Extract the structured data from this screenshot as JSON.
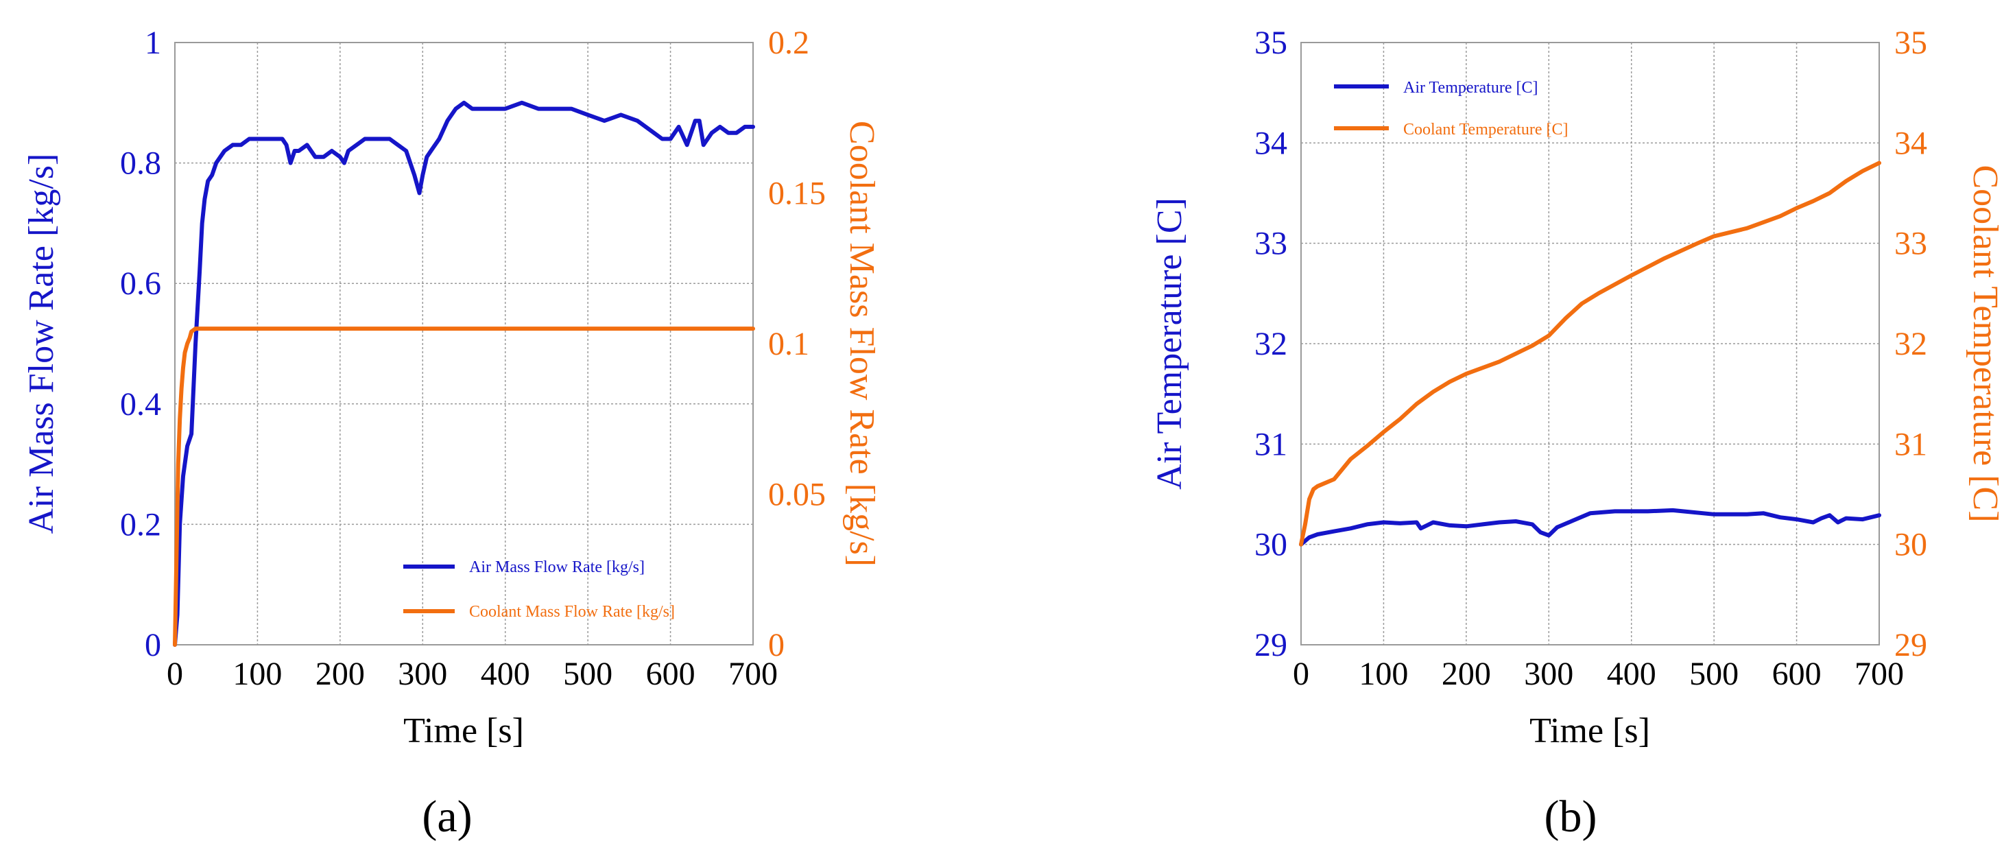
{
  "colors": {
    "air": "#1515c8",
    "coolant": "#f26e10",
    "grid": "#9a9a9a",
    "frame": "#9a9a9a",
    "text": "#000000"
  },
  "chart_data": [
    {
      "id": "a",
      "type": "line",
      "panel_label": "(a)",
      "xlabel": "Time [s]",
      "ylabel_left": "Air Mass Flow Rate [kg/s]",
      "ylabel_right": "Coolant Mass Flow Rate [kg/s]",
      "xlim": [
        0,
        700
      ],
      "ylim_left": [
        0,
        1
      ],
      "ylim_right": [
        0,
        0.2
      ],
      "x_ticks": [
        "0",
        "100",
        "200",
        "300",
        "400",
        "500",
        "600",
        "700"
      ],
      "y_ticks_left": [
        "0",
        "0.2",
        "0.4",
        "0.6",
        "0.8",
        "1"
      ],
      "y_ticks_right": [
        "0",
        "0.05",
        "0.1",
        "0.15",
        "0.2"
      ],
      "grid": true,
      "legend_position": "bottom-right",
      "legend": [
        "Air Mass Flow Rate [kg/s]",
        "Coolant Mass Flow Rate [kg/s]"
      ],
      "series": [
        {
          "name": "Air Mass Flow Rate [kg/s]",
          "axis": "left",
          "color_key": "air",
          "x": [
            0,
            3,
            6,
            10,
            15,
            20,
            25,
            30,
            33,
            36,
            40,
            45,
            50,
            55,
            60,
            70,
            80,
            90,
            100,
            110,
            120,
            130,
            135,
            140,
            145,
            150,
            160,
            170,
            180,
            190,
            200,
            205,
            210,
            220,
            230,
            240,
            250,
            260,
            270,
            280,
            290,
            296,
            300,
            305,
            310,
            320,
            330,
            340,
            350,
            360,
            370,
            380,
            400,
            420,
            440,
            460,
            480,
            500,
            520,
            540,
            560,
            580,
            590,
            600,
            610,
            620,
            630,
            635,
            640,
            650,
            660,
            670,
            680,
            690,
            700
          ],
          "values": [
            0,
            0.05,
            0.2,
            0.28,
            0.33,
            0.35,
            0.5,
            0.62,
            0.7,
            0.74,
            0.77,
            0.78,
            0.8,
            0.81,
            0.82,
            0.83,
            0.83,
            0.84,
            0.84,
            0.84,
            0.84,
            0.84,
            0.83,
            0.8,
            0.82,
            0.82,
            0.83,
            0.81,
            0.81,
            0.82,
            0.81,
            0.8,
            0.82,
            0.83,
            0.84,
            0.84,
            0.84,
            0.84,
            0.83,
            0.82,
            0.78,
            0.75,
            0.78,
            0.81,
            0.82,
            0.84,
            0.87,
            0.89,
            0.9,
            0.89,
            0.89,
            0.89,
            0.89,
            0.9,
            0.89,
            0.89,
            0.89,
            0.88,
            0.87,
            0.88,
            0.87,
            0.85,
            0.84,
            0.84,
            0.86,
            0.83,
            0.87,
            0.87,
            0.83,
            0.85,
            0.86,
            0.85,
            0.85,
            0.86,
            0.86
          ]
        },
        {
          "name": "Coolant Mass Flow Rate [kg/s]",
          "axis": "right",
          "color_key": "coolant",
          "x": [
            0,
            2,
            4,
            6,
            8,
            10,
            12,
            15,
            18,
            20,
            25,
            30,
            40,
            700
          ],
          "values": [
            0,
            0.03,
            0.06,
            0.075,
            0.085,
            0.092,
            0.097,
            0.1,
            0.102,
            0.104,
            0.105,
            0.105,
            0.105,
            0.105
          ]
        }
      ]
    },
    {
      "id": "b",
      "type": "line",
      "panel_label": "(b)",
      "xlabel": "Time [s]",
      "ylabel_left": "Air Temperature [C]",
      "ylabel_right": "Coolant Temperature [C]",
      "xlim": [
        0,
        700
      ],
      "ylim_left": [
        29,
        35
      ],
      "ylim_right": [
        29,
        35
      ],
      "x_ticks": [
        "0",
        "100",
        "200",
        "300",
        "400",
        "500",
        "600",
        "700"
      ],
      "y_ticks_left": [
        "29",
        "30",
        "31",
        "32",
        "33",
        "34",
        "35"
      ],
      "y_ticks_right": [
        "29",
        "30",
        "31",
        "32",
        "33",
        "34",
        "35"
      ],
      "grid": true,
      "legend_position": "top-left",
      "legend": [
        "Air Temperature [C]",
        "Coolant Temperature [C]"
      ],
      "series": [
        {
          "name": "Air Temperature [C]",
          "axis": "left",
          "color_key": "air",
          "x": [
            0,
            10,
            20,
            40,
            60,
            80,
            100,
            120,
            140,
            145,
            160,
            180,
            200,
            220,
            240,
            260,
            280,
            290,
            300,
            310,
            330,
            350,
            380,
            420,
            450,
            500,
            540,
            560,
            580,
            600,
            620,
            630,
            640,
            650,
            660,
            680,
            700
          ],
          "values": [
            30.0,
            30.07,
            30.1,
            30.13,
            30.16,
            30.2,
            30.22,
            30.21,
            30.22,
            30.16,
            30.22,
            30.19,
            30.18,
            30.2,
            30.22,
            30.23,
            30.2,
            30.12,
            30.09,
            30.17,
            30.24,
            30.31,
            30.33,
            30.33,
            30.34,
            30.3,
            30.3,
            30.31,
            30.27,
            30.25,
            30.22,
            30.26,
            30.29,
            30.22,
            30.26,
            30.25,
            30.29
          ]
        },
        {
          "name": "Coolant Temperature [C]",
          "axis": "right",
          "color_key": "coolant",
          "x": [
            0,
            5,
            10,
            15,
            20,
            40,
            60,
            80,
            100,
            120,
            140,
            160,
            180,
            200,
            240,
            280,
            300,
            320,
            340,
            360,
            400,
            440,
            480,
            500,
            540,
            580,
            600,
            620,
            640,
            660,
            680,
            700
          ],
          "values": [
            30.0,
            30.2,
            30.45,
            30.55,
            30.58,
            30.65,
            30.85,
            30.98,
            31.12,
            31.25,
            31.4,
            31.52,
            31.62,
            31.7,
            31.82,
            31.98,
            32.08,
            32.25,
            32.4,
            32.5,
            32.68,
            32.85,
            33.0,
            33.07,
            33.15,
            33.27,
            33.35,
            33.42,
            33.5,
            33.62,
            33.72,
            33.8
          ]
        }
      ]
    }
  ]
}
